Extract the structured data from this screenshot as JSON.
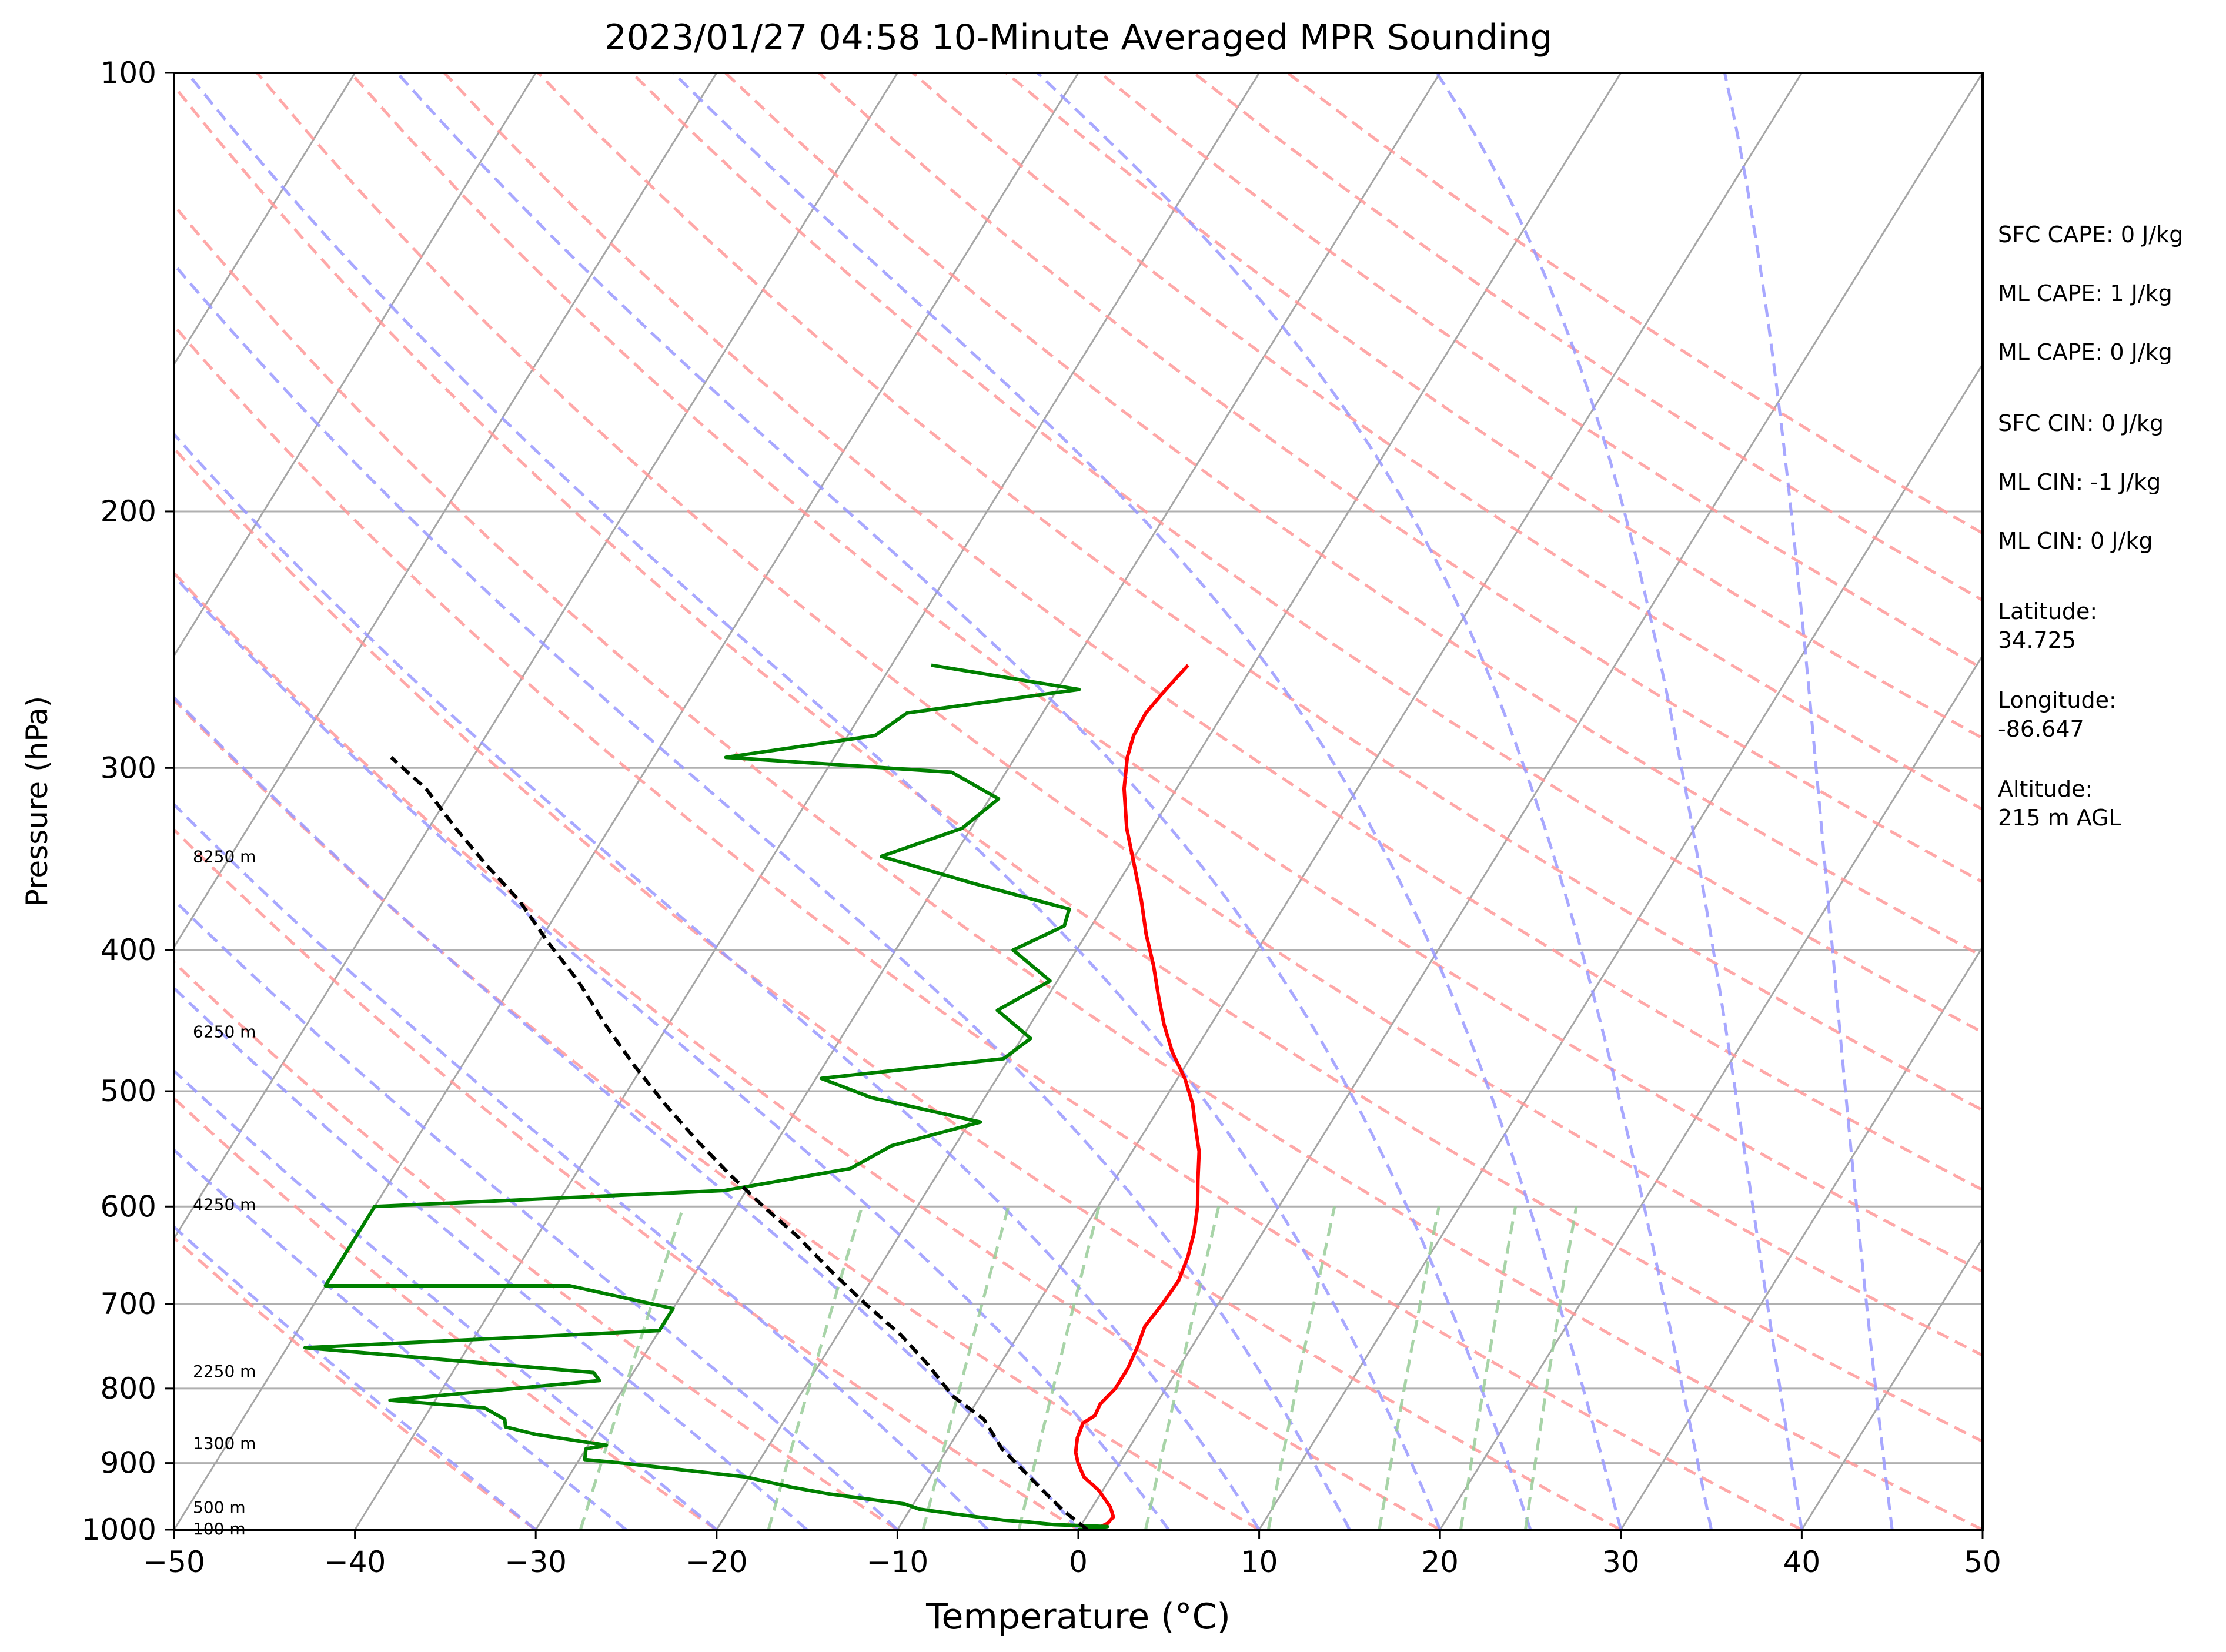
{
  "chart_data": {
    "type": "skew-t",
    "title": "2023/01/27 04:58 10-Minute Averaged MPR Sounding",
    "xlabel": "Temperature (°C)",
    "ylabel": "Pressure (hPa)",
    "xlim": [
      -50,
      50
    ],
    "ylim": [
      1000,
      100
    ],
    "y_scale": "log",
    "x_ticks": [
      -50,
      -40,
      -30,
      -20,
      -10,
      0,
      10,
      20,
      30,
      40,
      50
    ],
    "x_tick_labels": [
      "−50",
      "−40",
      "−30",
      "−20",
      "−10",
      "0",
      "10",
      "20",
      "30",
      "40",
      "50"
    ],
    "y_ticks": [
      100,
      200,
      300,
      400,
      500,
      600,
      700,
      800,
      900,
      1000
    ],
    "y_tick_labels": [
      "100",
      "200",
      "300",
      "400",
      "500",
      "600",
      "700",
      "800",
      "900",
      "1000"
    ],
    "horizontal_gridlines": [
      200,
      300,
      400,
      500,
      600,
      700,
      800,
      900
    ],
    "isotherm_temps": [
      -140,
      -130,
      -120,
      -110,
      -100,
      -90,
      -80,
      -70,
      -60,
      -50,
      -40,
      -30,
      -20,
      -10,
      0,
      10,
      20,
      30,
      40,
      50
    ],
    "dry_adiabat_potential_temps_C": [
      -30,
      -20,
      -10,
      0,
      10,
      20,
      30,
      40,
      50,
      60,
      70,
      80,
      90,
      100,
      110,
      120,
      130,
      140,
      150,
      160,
      170,
      180
    ],
    "moist_adiabat_start_temps_C": [
      -30,
      -25,
      -20,
      -15,
      -10,
      -5,
      0,
      5,
      10,
      15,
      20,
      25,
      30,
      35,
      40,
      45
    ],
    "mixing_ratio_gkg": [
      0.4,
      1,
      2,
      3,
      5,
      8,
      12,
      16,
      20
    ],
    "mixing_ratio_top_hPa": 600,
    "colors": {
      "temperature": "#ff0000",
      "dewpoint": "#008000",
      "parcel": "#000000",
      "dry_adiabats": "#ff9999",
      "moist_adiabats": "#9999ff",
      "mixing_ratio": "#99cc99",
      "isotherms": "#a6a6a6",
      "grid": "#b0b0b0"
    },
    "series": [
      {
        "name": "",
        "style": "solid",
        "color": "#ff0000",
        "points": [
          [
            -23.6,
            255
          ],
          [
            -24.0,
            265
          ],
          [
            -24.3,
            275
          ],
          [
            -24.2,
            285
          ],
          [
            -23.8,
            295
          ],
          [
            -22.9,
            310
          ],
          [
            -21.4,
            330
          ],
          [
            -19.7,
            350
          ],
          [
            -18.1,
            370
          ],
          [
            -16.7,
            390
          ],
          [
            -15.2,
            410
          ],
          [
            -13.9,
            430
          ],
          [
            -12.6,
            450
          ],
          [
            -11.2,
            470
          ],
          [
            -9.6,
            490
          ],
          [
            -8.3,
            510
          ],
          [
            -7.3,
            530
          ],
          [
            -6.3,
            550
          ],
          [
            -5.4,
            575
          ],
          [
            -4.5,
            600
          ],
          [
            -3.8,
            625
          ],
          [
            -3.3,
            650
          ],
          [
            -3.0,
            675
          ],
          [
            -3.1,
            700
          ],
          [
            -3.3,
            725
          ],
          [
            -3.0,
            750
          ],
          [
            -2.8,
            775
          ],
          [
            -2.8,
            800
          ],
          [
            -3.1,
            820
          ],
          [
            -3.0,
            835
          ],
          [
            -3.4,
            845
          ],
          [
            -3.2,
            865
          ],
          [
            -2.8,
            885
          ],
          [
            -2.3,
            900
          ],
          [
            -1.5,
            920
          ],
          [
            -0.2,
            940
          ],
          [
            1.0,
            965
          ],
          [
            1.5,
            980
          ],
          [
            1.4,
            990
          ],
          [
            0.9,
            1000
          ]
        ]
      },
      {
        "name": "",
        "style": "solid",
        "color": "#008000",
        "points": [
          [
            -37.8,
            255
          ],
          [
            -28.8,
            265
          ],
          [
            -37.5,
            275
          ],
          [
            -38.5,
            285
          ],
          [
            -46.0,
            295
          ],
          [
            -33.0,
            302
          ],
          [
            -29.5,
            315
          ],
          [
            -30.5,
            330
          ],
          [
            -34.0,
            345
          ],
          [
            -28.0,
            360
          ],
          [
            -21.8,
            375
          ],
          [
            -21.5,
            385
          ],
          [
            -23.5,
            400
          ],
          [
            -20.4,
            420
          ],
          [
            -22.3,
            440
          ],
          [
            -19.5,
            460
          ],
          [
            -20.3,
            475
          ],
          [
            -29.7,
            490
          ],
          [
            -26.3,
            505
          ],
          [
            -19.4,
            525
          ],
          [
            -23.5,
            545
          ],
          [
            -25.0,
            565
          ],
          [
            -31.2,
            585
          ],
          [
            -50.0,
            600
          ],
          [
            -50.0,
            680
          ],
          [
            -36.5,
            680
          ],
          [
            -30.0,
            705
          ],
          [
            -30.0,
            730
          ],
          [
            -49.0,
            750
          ],
          [
            -32.2,
            780
          ],
          [
            -31.6,
            790
          ],
          [
            -42.5,
            815
          ],
          [
            -37.0,
            825
          ],
          [
            -35.5,
            840
          ],
          [
            -35.2,
            850
          ],
          [
            -33.3,
            860
          ],
          [
            -29.0,
            875
          ],
          [
            -30.0,
            880
          ],
          [
            -29.7,
            895
          ],
          [
            -27.5,
            900
          ],
          [
            -20.2,
            920
          ],
          [
            -17.3,
            935
          ],
          [
            -15.0,
            945
          ],
          [
            -12.0,
            955
          ],
          [
            -10.5,
            960
          ],
          [
            -9.5,
            968
          ],
          [
            -7.5,
            975
          ],
          [
            -6.0,
            980
          ],
          [
            -4.5,
            985
          ],
          [
            -3.0,
            988
          ],
          [
            -1.5,
            992
          ],
          [
            1.5,
            995
          ],
          [
            0.0,
            1000
          ]
        ]
      },
      {
        "name": "",
        "style": "dashed",
        "color": "#000000",
        "points": [
          [
            0.5,
            1000
          ],
          [
            -1.5,
            970
          ],
          [
            -3.0,
            945
          ],
          [
            -4.5,
            920
          ],
          [
            -7.0,
            880
          ],
          [
            -9.0,
            840
          ],
          [
            -11.5,
            810
          ],
          [
            -14.0,
            770
          ],
          [
            -16.5,
            735
          ],
          [
            -19.5,
            700
          ],
          [
            -22.5,
            665
          ],
          [
            -25.5,
            630
          ],
          [
            -28.5,
            600
          ],
          [
            -31.5,
            570
          ],
          [
            -34.5,
            540
          ],
          [
            -37.5,
            510
          ],
          [
            -40.5,
            480
          ],
          [
            -43.5,
            450
          ],
          [
            -46.5,
            420
          ],
          [
            -49.5,
            395
          ],
          [
            -52.5,
            370
          ],
          [
            -55.5,
            350
          ],
          [
            -58.5,
            330
          ],
          [
            -61.5,
            310
          ],
          [
            -64.5,
            295
          ]
        ]
      }
    ],
    "height_labels": [
      {
        "text": "8250 m",
        "p": 345
      },
      {
        "text": "6250 m",
        "p": 455
      },
      {
        "text": "4250 m",
        "p": 598
      },
      {
        "text": "2250 m",
        "p": 778
      },
      {
        "text": "1300 m",
        "p": 872
      },
      {
        "text": "500 m",
        "p": 965
      },
      {
        "text": "100 m",
        "p": 998
      }
    ],
    "stats": [
      "SFC CAPE: 0 J/kg",
      "ML CAPE: 1 J/kg",
      "ML CAPE: 0 J/kg",
      "SFC CIN: 0 J/kg",
      "ML CIN: -1 J/kg",
      "ML CIN: 0 J/kg",
      "Latitude:",
      "34.725",
      "Longitude:",
      "-86.647",
      "Altitude:",
      "215 m AGL"
    ]
  }
}
